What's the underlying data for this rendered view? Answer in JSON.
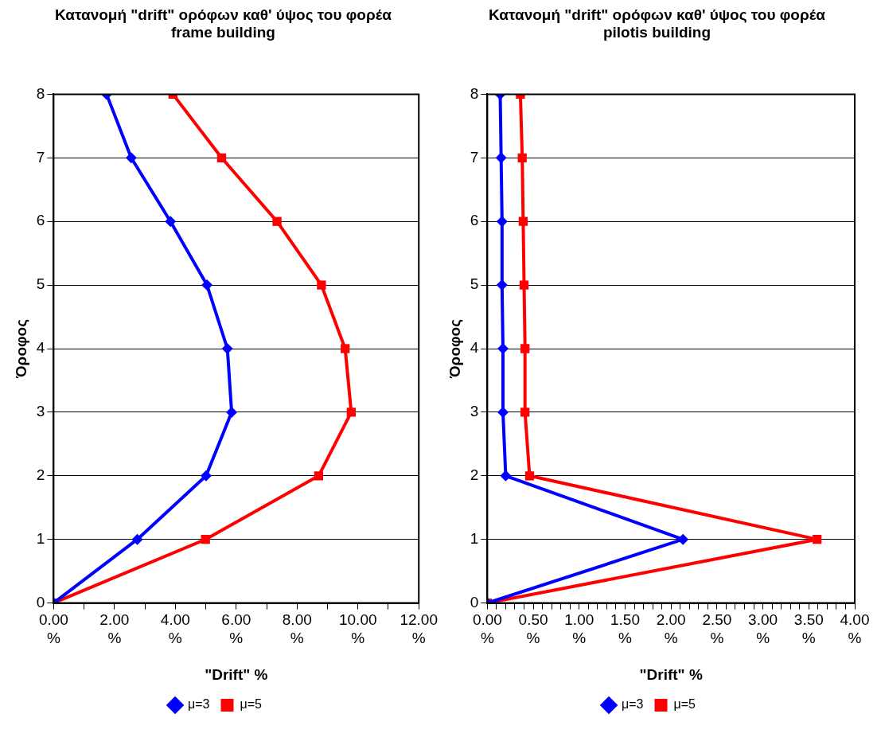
{
  "chart_data": [
    {
      "type": "line",
      "title": "Κατανομή \"drift\" ορόφων καθ' ύψος του φορέα frame building",
      "xlabel": "\"Drift\" %",
      "ylabel": "Όροφος",
      "xlim": [
        0,
        12
      ],
      "xticks": [
        {
          "value": 0,
          "label": "0.00 %"
        },
        {
          "value": 1,
          "label": null
        },
        {
          "value": 2,
          "label": "2.00 %"
        },
        {
          "value": 3,
          "label": null
        },
        {
          "value": 4,
          "label": "4.00 %"
        },
        {
          "value": 5,
          "label": null
        },
        {
          "value": 6,
          "label": "6.00 %"
        },
        {
          "value": 7,
          "label": null
        },
        {
          "value": 8,
          "label": "8.00 %"
        },
        {
          "value": 9,
          "label": null
        },
        {
          "value": 10,
          "label": "10.00 %"
        },
        {
          "value": 11,
          "label": null
        },
        {
          "value": 12,
          "label": "12.00 %"
        }
      ],
      "ylim": [
        0,
        8
      ],
      "yticks": [
        0,
        1,
        2,
        3,
        4,
        5,
        6,
        7,
        8
      ],
      "grid": "y",
      "legend": "bottom",
      "line_style": "solid",
      "series": [
        {
          "name": "μ=3",
          "color": "#0000ff",
          "marker": "diamond",
          "x": [
            0,
            2.75,
            5.01,
            5.85,
            5.71,
            5.04,
            3.84,
            2.55,
            1.74
          ],
          "values": [
            0,
            1,
            2,
            3,
            4,
            5,
            6,
            7,
            8
          ]
        },
        {
          "name": "μ=5",
          "color": "#ff0000",
          "marker": "square",
          "x": [
            0,
            4.99,
            8.71,
            9.78,
            9.58,
            8.8,
            7.34,
            5.52,
            3.92
          ],
          "values": [
            0,
            1,
            2,
            3,
            4,
            5,
            6,
            7,
            8
          ]
        }
      ]
    },
    {
      "type": "line",
      "title": "Κατανομή \"drift\" ορόφων καθ' ύψος του φορέα pilotis building",
      "xlabel": "\"Drift\" %",
      "ylabel": "Όροφος",
      "xlim": [
        0,
        4
      ],
      "xticks": [
        {
          "value": 0,
          "label": "0.00 %"
        },
        {
          "value": 0.1,
          "label": null
        },
        {
          "value": 0.2,
          "label": null
        },
        {
          "value": 0.3,
          "label": null
        },
        {
          "value": 0.4,
          "label": null
        },
        {
          "value": 0.5,
          "label": "0.50 %"
        },
        {
          "value": 0.6,
          "label": null
        },
        {
          "value": 0.7,
          "label": null
        },
        {
          "value": 0.8,
          "label": null
        },
        {
          "value": 0.9,
          "label": null
        },
        {
          "value": 1,
          "label": "1.00 %"
        },
        {
          "value": 1.1,
          "label": null
        },
        {
          "value": 1.2,
          "label": null
        },
        {
          "value": 1.3,
          "label": null
        },
        {
          "value": 1.4,
          "label": null
        },
        {
          "value": 1.5,
          "label": "1.50 %"
        },
        {
          "value": 1.6,
          "label": null
        },
        {
          "value": 1.7,
          "label": null
        },
        {
          "value": 1.8,
          "label": null
        },
        {
          "value": 1.9,
          "label": null
        },
        {
          "value": 2,
          "label": "2.00 %"
        },
        {
          "value": 2.1,
          "label": null
        },
        {
          "value": 2.2,
          "label": null
        },
        {
          "value": 2.3,
          "label": null
        },
        {
          "value": 2.4,
          "label": null
        },
        {
          "value": 2.5,
          "label": "2.50 %"
        },
        {
          "value": 2.6,
          "label": null
        },
        {
          "value": 2.7,
          "label": null
        },
        {
          "value": 2.8,
          "label": null
        },
        {
          "value": 2.9,
          "label": null
        },
        {
          "value": 3,
          "label": "3.00 %"
        },
        {
          "value": 3.1,
          "label": null
        },
        {
          "value": 3.2,
          "label": null
        },
        {
          "value": 3.3,
          "label": null
        },
        {
          "value": 3.4,
          "label": null
        },
        {
          "value": 3.5,
          "label": "3.50 %"
        },
        {
          "value": 3.6,
          "label": null
        },
        {
          "value": 3.7,
          "label": null
        },
        {
          "value": 3.8,
          "label": null
        },
        {
          "value": 3.9,
          "label": null
        },
        {
          "value": 4,
          "label": "4.00 %"
        }
      ],
      "ylim": [
        0,
        8
      ],
      "yticks": [
        0,
        1,
        2,
        3,
        4,
        5,
        6,
        7,
        8
      ],
      "grid": "y",
      "legend": "bottom",
      "line_style": "solid",
      "series": [
        {
          "name": "μ=3",
          "color": "#0000ff",
          "marker": "diamond",
          "x": [
            0,
            2.13,
            0.2,
            0.17,
            0.17,
            0.16,
            0.16,
            0.15,
            0.14
          ],
          "values": [
            0,
            1,
            2,
            3,
            4,
            5,
            6,
            7,
            8
          ]
        },
        {
          "name": "μ=5",
          "color": "#ff0000",
          "marker": "square",
          "x": [
            0,
            3.59,
            0.46,
            0.41,
            0.41,
            0.4,
            0.39,
            0.38,
            0.36
          ],
          "values": [
            0,
            1,
            2,
            3,
            4,
            5,
            6,
            7,
            8
          ]
        }
      ]
    }
  ]
}
